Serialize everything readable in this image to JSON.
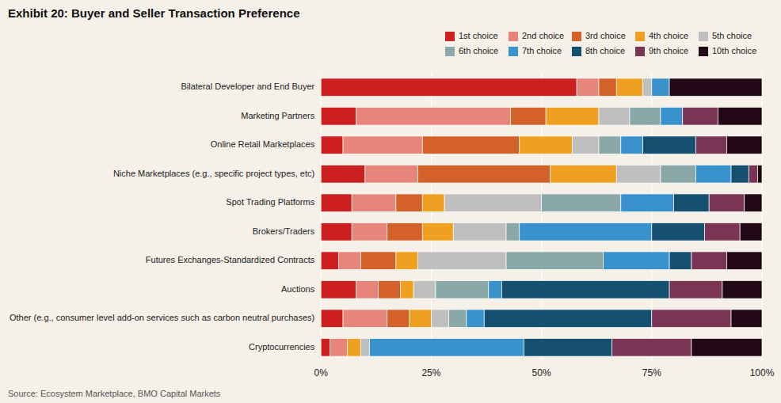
{
  "chart_data": {
    "type": "bar",
    "orientation": "horizontal",
    "stacked": true,
    "title": "Exhibit 20: Buyer and Seller Transaction Preference",
    "source": "Source: Ecosystem Marketplace, BMO Capital Markets",
    "categories": [
      "Bilateral Developer and End Buyer",
      "Marketing Partners",
      "Online Retail Marketplaces",
      "Niche Marketplaces (e.g., specific project types, etc)",
      "Spot Trading Platforms",
      "Brokers/Traders",
      "Futures Exchanges-Standardized Contracts",
      "Auctions",
      "Other (e.g., consumer level add-on services such as carbon neutral purchases)",
      "Cryptocurrencies"
    ],
    "series": [
      {
        "name": "1st choice",
        "color": "#cc1f1f",
        "values": [
          58,
          8,
          5,
          10,
          7,
          7,
          4,
          8,
          5,
          2
        ]
      },
      {
        "name": "2nd choice",
        "color": "#e8857a",
        "values": [
          5,
          35,
          18,
          12,
          10,
          8,
          5,
          5,
          10,
          4
        ]
      },
      {
        "name": "3rd choice",
        "color": "#d4602a",
        "values": [
          4,
          8,
          22,
          30,
          6,
          8,
          8,
          5,
          5,
          0
        ]
      },
      {
        "name": "4th choice",
        "color": "#f0a020",
        "values": [
          6,
          12,
          12,
          15,
          5,
          7,
          5,
          3,
          5,
          3
        ]
      },
      {
        "name": "5th choice",
        "color": "#c0bfbf",
        "values": [
          2,
          7,
          6,
          10,
          22,
          12,
          20,
          5,
          4,
          2
        ]
      },
      {
        "name": "6th choice",
        "color": "#8aa8a8",
        "values": [
          0,
          7,
          5,
          8,
          18,
          3,
          22,
          12,
          4,
          0
        ]
      },
      {
        "name": "7th choice",
        "color": "#3a92cc",
        "values": [
          4,
          5,
          5,
          8,
          12,
          30,
          15,
          3,
          4,
          35
        ]
      },
      {
        "name": "8th choice",
        "color": "#155070",
        "values": [
          0,
          0,
          12,
          4,
          8,
          12,
          5,
          38,
          38,
          20
        ]
      },
      {
        "name": "9th choice",
        "color": "#7a3555",
        "values": [
          0,
          8,
          7,
          2,
          8,
          8,
          8,
          12,
          18,
          18
        ]
      },
      {
        "name": "10th choice",
        "color": "#230815",
        "values": [
          21,
          10,
          8,
          1,
          4,
          5,
          8,
          9,
          7,
          16
        ]
      }
    ],
    "xlim": [
      0,
      100
    ],
    "xticks": [
      {
        "value": 0,
        "label": "0%"
      },
      {
        "value": 25,
        "label": "25%"
      },
      {
        "value": 50,
        "label": "50%"
      },
      {
        "value": 75,
        "label": "75%"
      },
      {
        "value": 100,
        "label": "100%"
      }
    ],
    "grid": true,
    "legend": "upper right"
  }
}
